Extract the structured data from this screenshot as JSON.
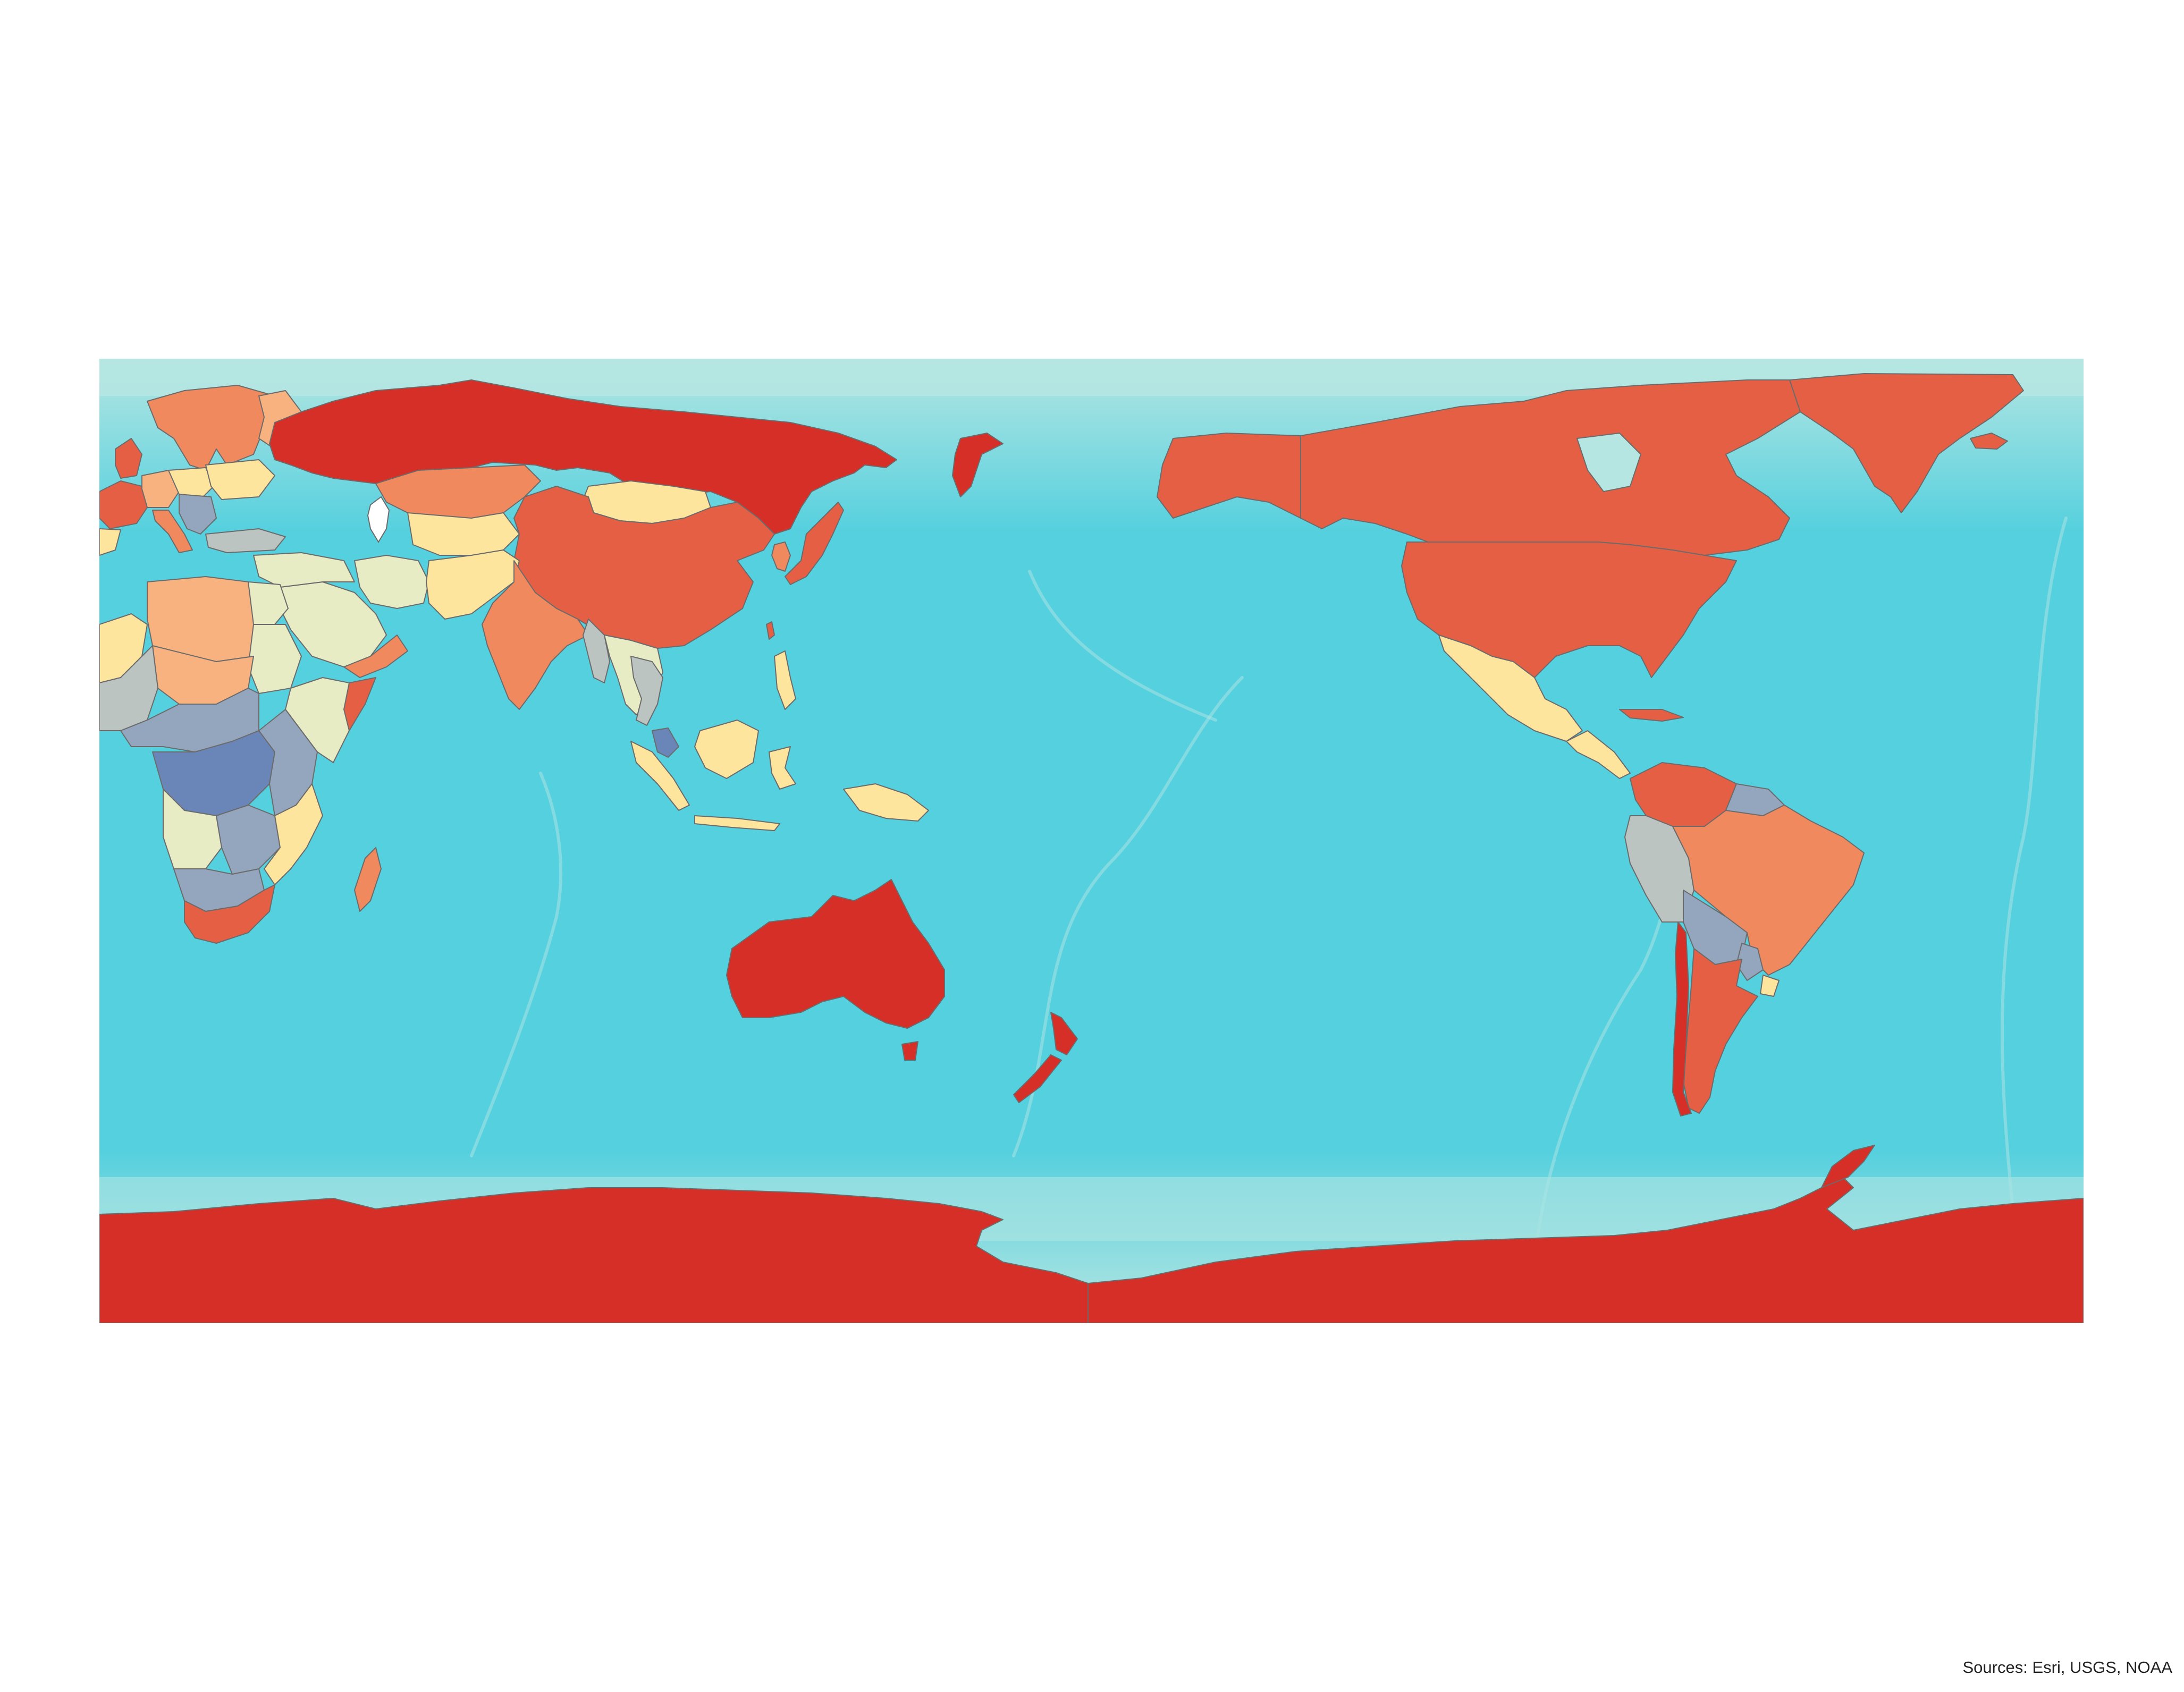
{
  "map": {
    "projection": "equirectangular, Pacific-centered",
    "classes": {
      "class_1": "#d62f27",
      "class_2": "#e55f44",
      "class_3": "#f08a5e",
      "class_4": "#f7b27f",
      "class_5": "#fee59e",
      "class_6": "#e7ecc5",
      "class_7": "#bcc4c2",
      "class_8": "#94a6be",
      "class_9": "#6a86b8",
      "lake": "#ffffff"
    },
    "ocean": {
      "deep": "#55d0de",
      "shelf": "#b5e6e2"
    }
  },
  "credit": {
    "text": "Sources: Esri, USGS, NOAA"
  }
}
